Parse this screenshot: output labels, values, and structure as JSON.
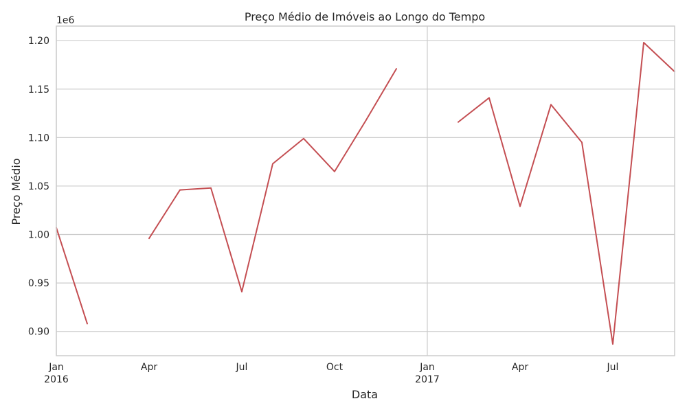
{
  "chart_data": {
    "type": "line",
    "title": "Preço Médio de Imóveis ao Longo do Tempo",
    "xlabel": "Data",
    "ylabel": "Preço Médio",
    "y_offset_text": "1e6",
    "ylim": [
      0.875,
      1.215
    ],
    "y_ticks": [
      0.9,
      0.95,
      1.0,
      1.05,
      1.1,
      1.15,
      1.2
    ],
    "y_tick_labels": [
      "0.90",
      "0.95",
      "1.00",
      "1.05",
      "1.10",
      "1.15",
      "1.20"
    ],
    "x_ticks": [
      {
        "date": "2016-01",
        "label": "Jan",
        "sublabel": "2016",
        "major": true
      },
      {
        "date": "2016-04",
        "label": "Apr",
        "sublabel": "",
        "major": false
      },
      {
        "date": "2016-07",
        "label": "Jul",
        "sublabel": "",
        "major": false
      },
      {
        "date": "2016-10",
        "label": "Oct",
        "sublabel": "",
        "major": false
      },
      {
        "date": "2017-01",
        "label": "Jan",
        "sublabel": "2017",
        "major": true
      },
      {
        "date": "2017-04",
        "label": "Apr",
        "sublabel": "",
        "major": false
      },
      {
        "date": "2017-07",
        "label": "Jul",
        "sublabel": "",
        "major": false
      }
    ],
    "xlim": [
      "2016-01",
      "2017-09"
    ],
    "grid": true,
    "series": [
      {
        "color": "#c44e52",
        "points": [
          {
            "x": "2016-01",
            "y": 1.007
          },
          {
            "x": "2016-02",
            "y": 0.908
          },
          {
            "x": "2016-03",
            "y": null
          },
          {
            "x": "2016-04",
            "y": 0.996
          },
          {
            "x": "2016-05",
            "y": 1.046
          },
          {
            "x": "2016-06",
            "y": 1.048
          },
          {
            "x": "2016-07",
            "y": 0.941
          },
          {
            "x": "2016-08",
            "y": 1.073
          },
          {
            "x": "2016-09",
            "y": 1.099
          },
          {
            "x": "2016-10",
            "y": 1.065
          },
          {
            "x": "2016-11",
            "y": 1.117
          },
          {
            "x": "2016-12",
            "y": 1.171
          },
          {
            "x": "2017-01",
            "y": null
          },
          {
            "x": "2017-02",
            "y": 1.116
          },
          {
            "x": "2017-03",
            "y": 1.141
          },
          {
            "x": "2017-04",
            "y": 1.029
          },
          {
            "x": "2017-05",
            "y": 1.134
          },
          {
            "x": "2017-06",
            "y": 1.095
          },
          {
            "x": "2017-07",
            "y": 0.887
          },
          {
            "x": "2017-08",
            "y": 1.198
          },
          {
            "x": "2017-09",
            "y": 1.168
          }
        ]
      }
    ]
  }
}
